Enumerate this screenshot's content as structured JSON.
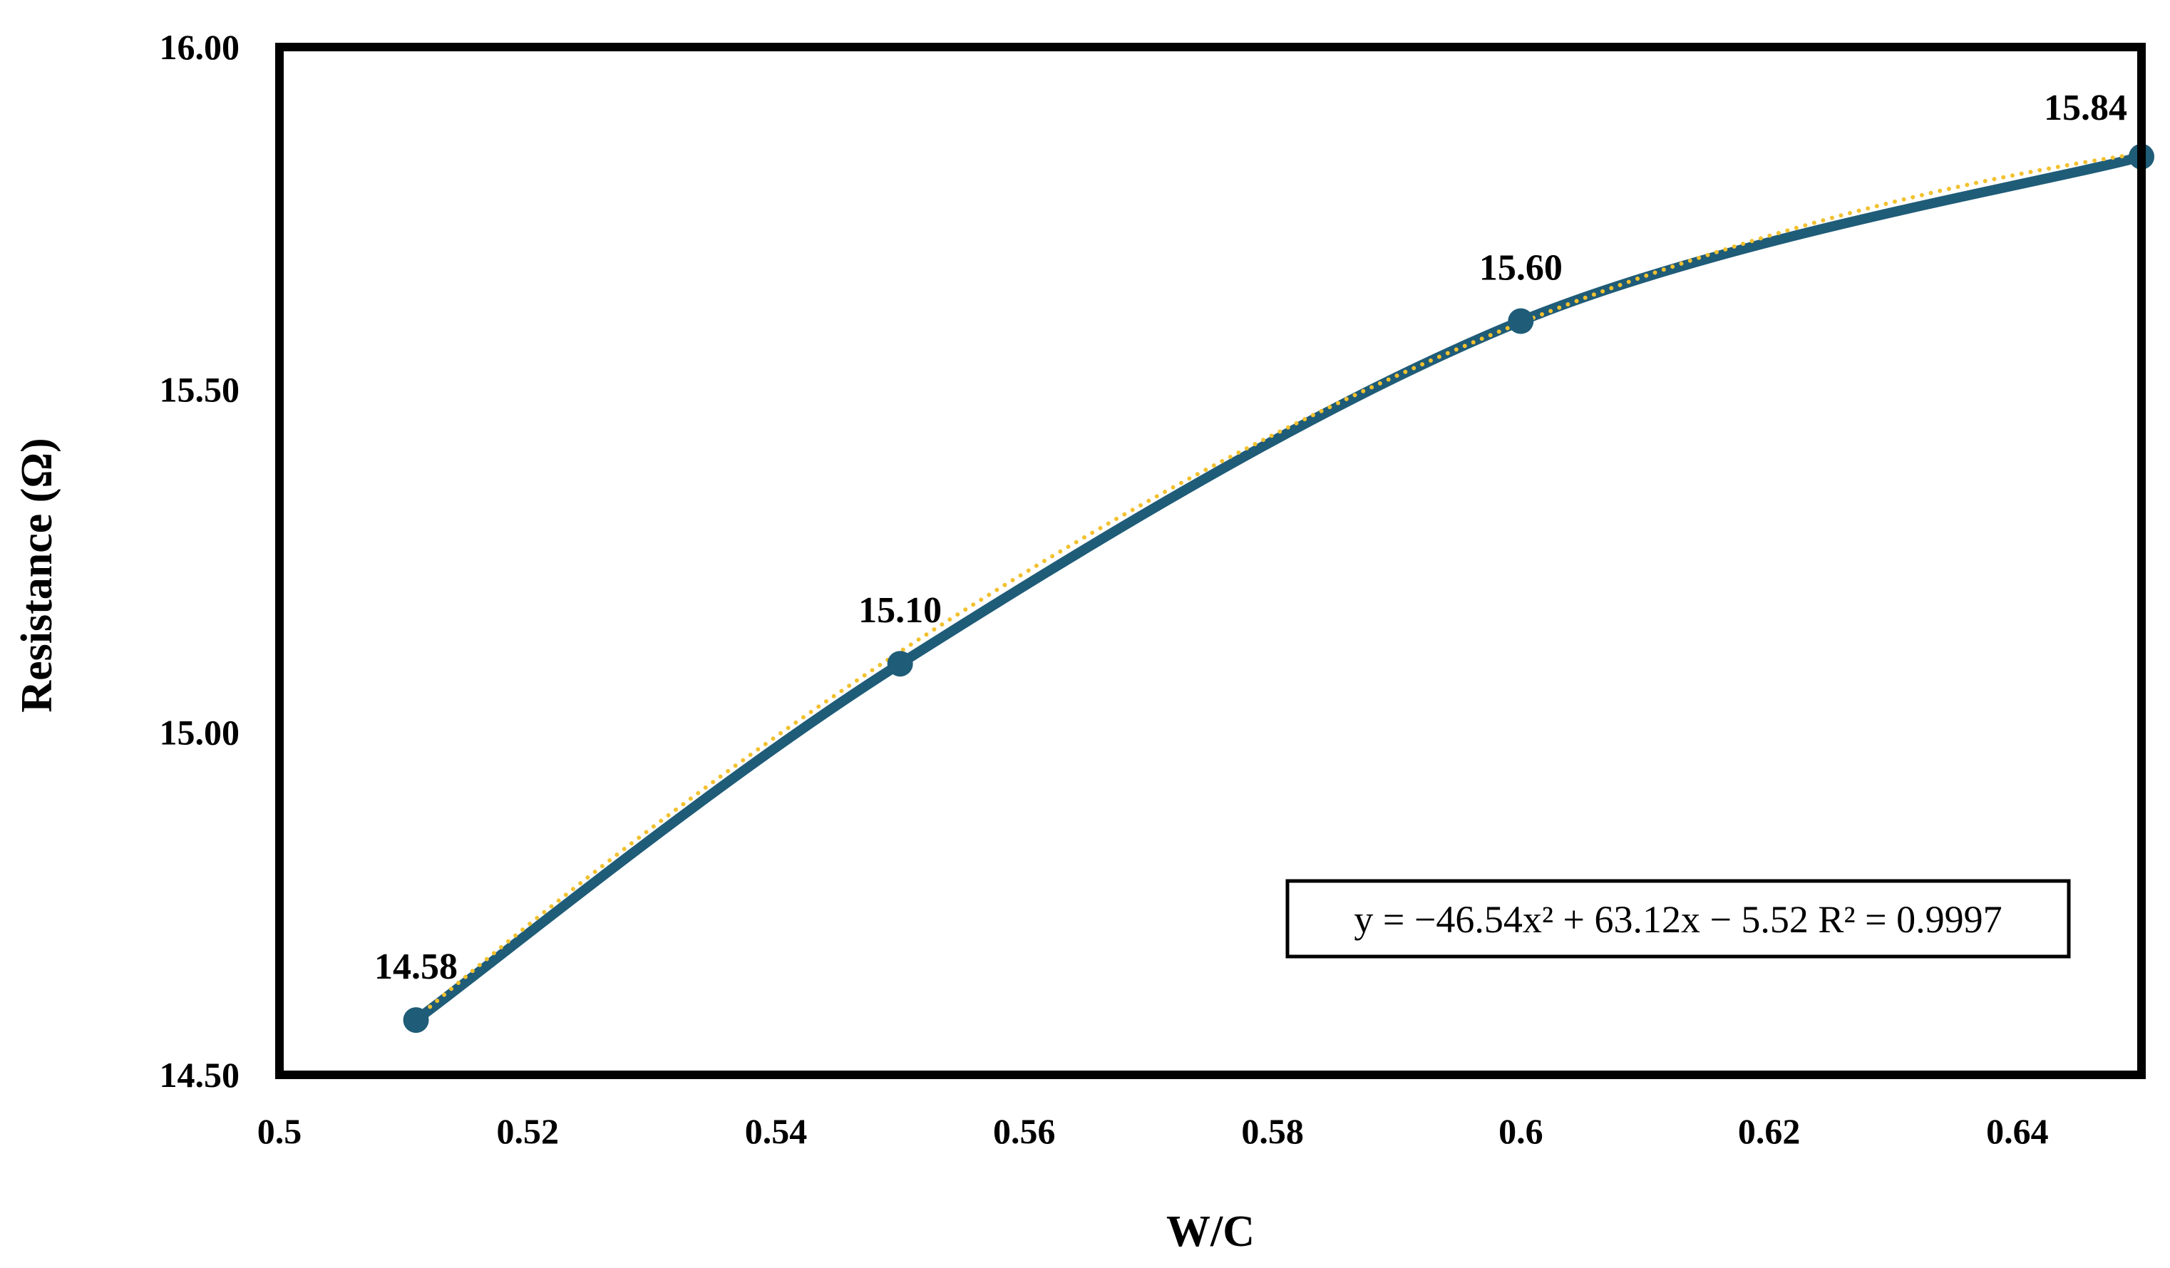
{
  "chart_data": {
    "type": "scatter",
    "title": "",
    "xlabel": "W/C",
    "ylabel": "Resistance (Ω)",
    "xlim": [
      0.5,
      0.65
    ],
    "ylim": [
      14.5,
      16.0
    ],
    "x_ticks": [
      "0.5",
      "0.52",
      "0.54",
      "0.56",
      "0.58",
      "0.6",
      "0.62",
      "0.64"
    ],
    "x_tick_values": [
      0.5,
      0.52,
      0.54,
      0.56,
      0.58,
      0.6,
      0.62,
      0.64
    ],
    "y_ticks": [
      "14.50",
      "15.00",
      "15.50",
      "16.00"
    ],
    "y_tick_values": [
      14.5,
      15.0,
      15.5,
      16.0
    ],
    "grid": false,
    "legend": "none",
    "series": [
      {
        "x": [
          0.511,
          0.55,
          0.6,
          0.65
        ],
        "y": [
          14.58,
          15.1,
          15.6,
          15.84
        ],
        "labels": [
          "14.58",
          "15.10",
          "15.60",
          "15.84"
        ],
        "color": "#1f5c78",
        "line": "smooth",
        "markers": "circle"
      }
    ],
    "trendline": {
      "type": "polynomial",
      "order": 2,
      "coefficients": [
        -46.54,
        63.12,
        -5.52
      ],
      "r_squared": 0.9997,
      "color": "#f2c12e",
      "style": "dotted",
      "equation_label": "y = −46.54x² + 63.12x − 5.52 R² = 0.9997"
    }
  }
}
